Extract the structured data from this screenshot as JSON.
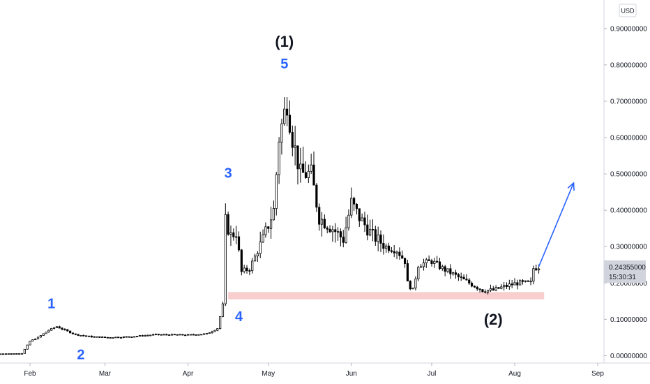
{
  "chart_data": {
    "type": "candlestick",
    "currency": "USD",
    "y_ticks": [
      "0.00000000",
      "0.10000000",
      "0.20000000",
      "0.30000000",
      "0.40000000",
      "0.50000000",
      "0.60000000",
      "0.70000000",
      "0.80000000",
      "0.90000000"
    ],
    "x_ticks": [
      "Feb",
      "Mar",
      "Apr",
      "May",
      "Jun",
      "Jul",
      "Aug",
      "Sep"
    ],
    "ylim": [
      -0.005,
      0.94
    ],
    "grid": false,
    "last_price": "0.24355000",
    "countdown": "15:30:31",
    "colors": {
      "bull": "#ffffff",
      "bear": "#000000",
      "wick": "#000000",
      "annotation_blue": "#2962ff",
      "zone": "#f7c6c6",
      "price_label": "#d1d4dc"
    },
    "support_zone": {
      "low": 0.155,
      "high": 0.175,
      "from": "Apr 16",
      "to": "Aug 12"
    },
    "annotations": [
      {
        "text": "1",
        "style": "blue",
        "date": "Feb 9",
        "price": 0.13
      },
      {
        "text": "2",
        "style": "blue",
        "date": "Feb 20",
        "price": -0.01
      },
      {
        "text": "3",
        "style": "blue",
        "date": "Apr 16",
        "price": 0.49
      },
      {
        "text": "4",
        "style": "blue",
        "date": "Apr 20",
        "price": 0.095
      },
      {
        "text": "5",
        "style": "blue",
        "date": "May 7",
        "price": 0.79
      },
      {
        "text": "(1)",
        "style": "black",
        "date": "May 7",
        "price": 0.85
      },
      {
        "text": "(2)",
        "style": "black",
        "date": "Jul 24",
        "price": 0.085
      }
    ],
    "projection_arrow": {
      "from": {
        "date": "Aug 10",
        "price": 0.245
      },
      "to": {
        "date": "Aug 23",
        "price": 0.475
      }
    },
    "keypoints": [
      [
        "Jan 20",
        0.005
      ],
      [
        "Jan 29",
        0.006
      ],
      [
        "Feb 1",
        0.04
      ],
      [
        "Feb 4",
        0.05
      ],
      [
        "Feb 8",
        0.07
      ],
      [
        "Feb 11",
        0.08
      ],
      [
        "Feb 14",
        0.07
      ],
      [
        "Feb 18",
        0.058
      ],
      [
        "Feb 24",
        0.052
      ],
      [
        "Mar 2",
        0.05
      ],
      [
        "Mar 10",
        0.052
      ],
      [
        "Mar 20",
        0.058
      ],
      [
        "Apr 1",
        0.057
      ],
      [
        "Apr 8",
        0.06
      ],
      [
        "Apr 12",
        0.075
      ],
      [
        "Apr 14",
        0.14
      ],
      [
        "Apr 15",
        0.37
      ],
      [
        "Apr 17",
        0.33
      ],
      [
        "Apr 19",
        0.34
      ],
      [
        "Apr 21",
        0.23
      ],
      [
        "Apr 24",
        0.24
      ],
      [
        "Apr 29",
        0.32
      ],
      [
        "May 3",
        0.4
      ],
      [
        "May 5",
        0.6
      ],
      [
        "May 8",
        0.7
      ],
      [
        "May 10",
        0.6
      ],
      [
        "May 13",
        0.5
      ],
      [
        "May 17",
        0.5
      ],
      [
        "May 20",
        0.38
      ],
      [
        "May 25",
        0.35
      ],
      [
        "May 29",
        0.32
      ],
      [
        "Jun 1",
        0.42
      ],
      [
        "Jun 4",
        0.38
      ],
      [
        "Jun 9",
        0.33
      ],
      [
        "Jun 14",
        0.3
      ],
      [
        "Jun 18",
        0.29
      ],
      [
        "Jun 21",
        0.26
      ],
      [
        "Jun 22",
        0.2
      ],
      [
        "Jun 24",
        0.18
      ],
      [
        "Jun 26",
        0.25
      ],
      [
        "Jul 1",
        0.26
      ],
      [
        "Jul 5",
        0.24
      ],
      [
        "Jul 10",
        0.22
      ],
      [
        "Jul 15",
        0.2
      ],
      [
        "Jul 20",
        0.18
      ],
      [
        "Jul 24",
        0.18
      ],
      [
        "Jul 28",
        0.19
      ],
      [
        "Aug 2",
        0.2
      ],
      [
        "Aug 7",
        0.2
      ],
      [
        "Aug 8",
        0.24
      ],
      [
        "Aug 10",
        0.245
      ]
    ]
  }
}
